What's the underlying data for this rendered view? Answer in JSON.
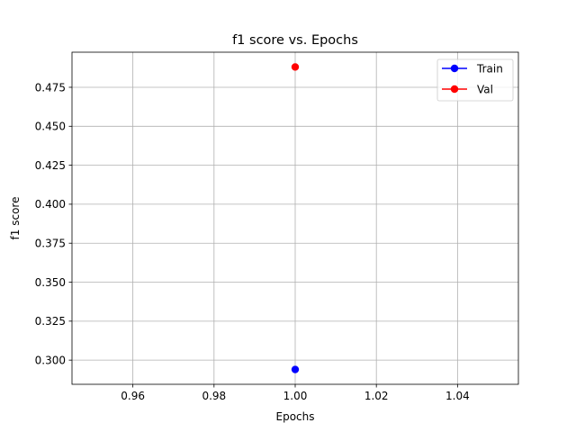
{
  "chart_data": {
    "type": "line",
    "title": "f1 score vs. Epochs",
    "xlabel": "Epochs",
    "ylabel": "f1 score",
    "xlim": [
      0.945,
      1.055
    ],
    "ylim": [
      0.2845,
      0.4975
    ],
    "xticks": [
      0.96,
      0.98,
      1.0,
      1.02,
      1.04
    ],
    "xtick_labels": [
      "0.96",
      "0.98",
      "1.00",
      "1.02",
      "1.04"
    ],
    "yticks": [
      0.3,
      0.325,
      0.35,
      0.375,
      0.4,
      0.425,
      0.45,
      0.475
    ],
    "ytick_labels": [
      "0.300",
      "0.325",
      "0.350",
      "0.375",
      "0.400",
      "0.425",
      "0.450",
      "0.475"
    ],
    "grid": true,
    "legend_position": "top-right",
    "series": [
      {
        "name": "Train",
        "color": "#0000ff",
        "x": [
          1.0
        ],
        "y": [
          0.294
        ]
      },
      {
        "name": "Val",
        "color": "#ff0000",
        "x": [
          1.0
        ],
        "y": [
          0.488
        ]
      }
    ]
  }
}
